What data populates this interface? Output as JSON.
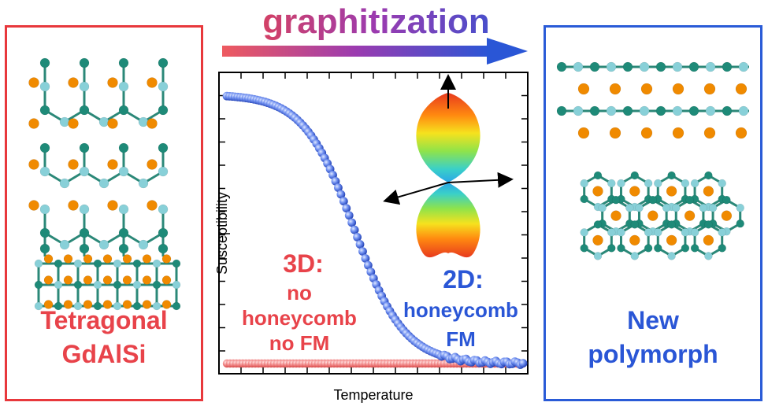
{
  "header": {
    "process_label": "graphitization"
  },
  "left_panel": {
    "line1": "Tetragonal",
    "line2": "GdAlSi",
    "border_color": "#e8383c"
  },
  "right_panel": {
    "line1": "New",
    "line2": "polymorph",
    "border_color": "#2a5bd7"
  },
  "chart_data": {
    "type": "scatter",
    "xlabel": "Temperature",
    "ylabel": "Susceptibility",
    "grid": false,
    "series": [
      {
        "values_shape": "sigmoid-decreasing",
        "color": "#3b66d8"
      },
      {
        "values_shape": "flat-zero",
        "color": "#ee6b6b"
      }
    ],
    "annotations": {
      "left_heading": "3D:",
      "left_line1": "no",
      "left_line2": "honeycomb",
      "left_line3": "no FM",
      "right_heading": "2D:",
      "right_line1": "honeycomb",
      "right_line2": "FM"
    }
  },
  "colors": {
    "red": "#e8434a",
    "blue": "#2a56d6",
    "teal": "#1e8a78",
    "light_teal": "#88d0d8",
    "orange": "#f08a00"
  }
}
